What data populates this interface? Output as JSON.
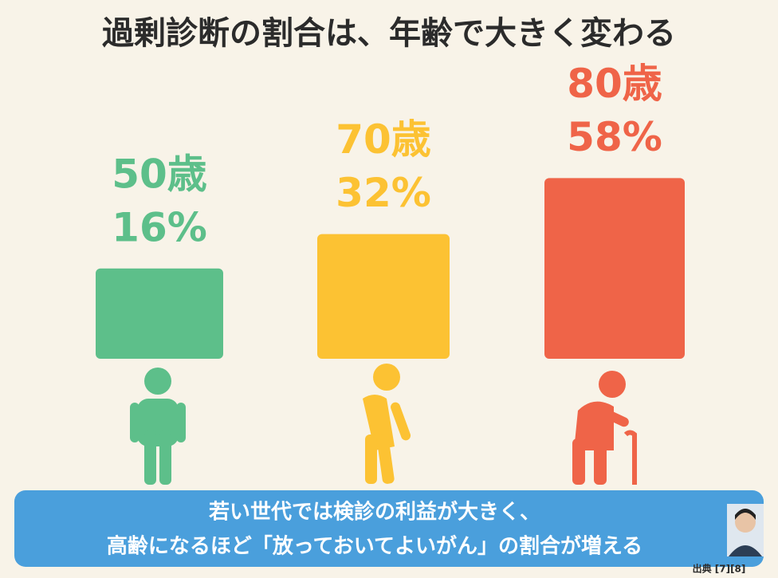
{
  "chart_data": {
    "type": "bar",
    "title": "過剰診断の割合は、年齢で大きく変わる",
    "categories": [
      "50歳",
      "70歳",
      "80歳"
    ],
    "values": [
      16,
      32,
      58
    ],
    "value_labels": [
      "16%",
      "32%",
      "58%"
    ],
    "colors": [
      "#5dbf8a",
      "#fcc233",
      "#ef6448"
    ],
    "caption": [
      "若い世代では検診の利益が大きく、",
      "高齢になるほど「放っておいてよいがん」の割合が増える"
    ],
    "source": "出典 [7][8]"
  }
}
